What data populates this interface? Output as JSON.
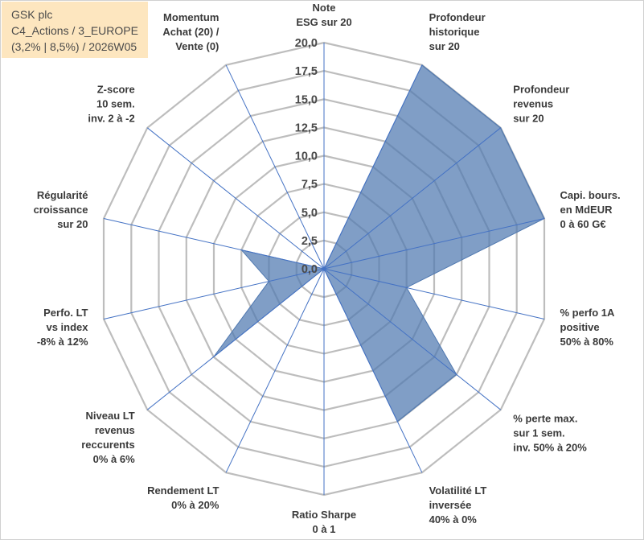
{
  "title_lines": [
    "GSK plc",
    "C4_Actions / 3_EUROPE",
    "(3,2% | 8,5%) / 2026W05"
  ],
  "colors": {
    "fill": "#4f78b0",
    "fill_opacity": 0.72,
    "spoke": "#4472c4",
    "grid": "#bdbdbd"
  },
  "chart_data": {
    "type": "radar",
    "title": "GSK plc",
    "rmax": 20,
    "ticks": [
      "0,0",
      "2,5",
      "5,0",
      "7,5",
      "10,0",
      "12,5",
      "15,0",
      "17,5",
      "20,0"
    ],
    "grid_rings": 8,
    "axes": [
      {
        "label": [
          "Note",
          "ESG sur 20"
        ],
        "value": 0
      },
      {
        "label": [
          "Profondeur",
          "historique",
          "sur 20"
        ],
        "value": 20
      },
      {
        "label": [
          "Profondeur",
          "revenus",
          "sur 20"
        ],
        "value": 20
      },
      {
        "label": [
          "Capi. bours.",
          "en MdEUR",
          "0 à 60 G€"
        ],
        "value": 20
      },
      {
        "label": [
          "% perfo 1A",
          "positive",
          "50% à 80%"
        ],
        "value": 7.5
      },
      {
        "label": [
          "% perte max.",
          "sur 1 sem.",
          "inv. 50% à 20%"
        ],
        "value": 15
      },
      {
        "label": [
          "Volatilité LT",
          "inversée",
          "40% à 0%"
        ],
        "value": 15
      },
      {
        "label": [
          "Ratio Sharpe",
          "0 à 1"
        ],
        "value": 0
      },
      {
        "label": [
          "Rendement LT",
          "0% à 20%"
        ],
        "value": 0
      },
      {
        "label": [
          "Niveau LT",
          "revenus",
          "reccurents",
          "0% à 6%"
        ],
        "value": 12.5
      },
      {
        "label": [
          "Perfo. LT",
          "vs index",
          "-8% à 12%"
        ],
        "value": 5
      },
      {
        "label": [
          "Régularité",
          "croissance",
          "sur 20"
        ],
        "value": 7.5
      },
      {
        "label": [
          "Z-score",
          "10 sem.",
          "inv. 2 à -2"
        ],
        "value": 0
      },
      {
        "label": [
          "Momentum",
          "Achat (20) /",
          "Vente (0)"
        ],
        "value": 0
      }
    ]
  }
}
